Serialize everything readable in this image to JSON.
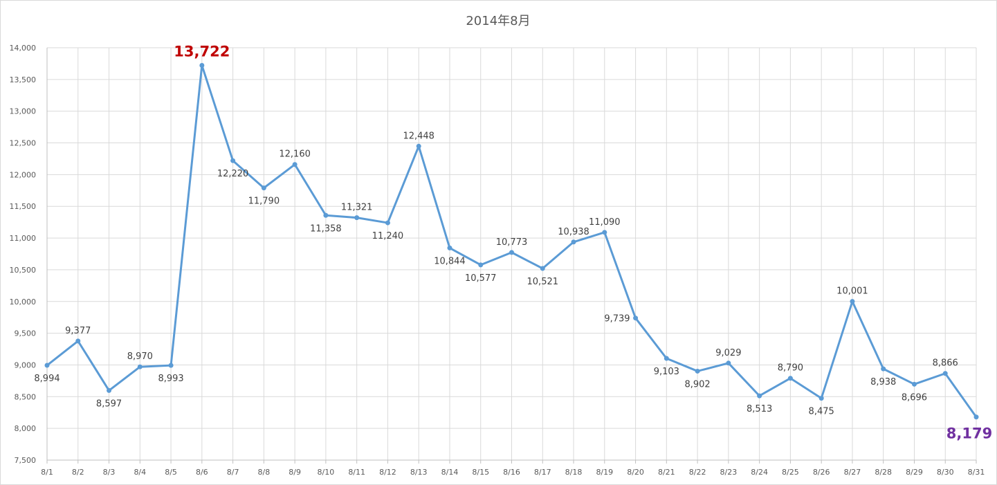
{
  "chart_data": {
    "type": "line",
    "title": "2014年8月",
    "categories": [
      "8/1",
      "8/2",
      "8/3",
      "8/4",
      "8/5",
      "8/6",
      "8/7",
      "8/8",
      "8/9",
      "8/10",
      "8/11",
      "8/12",
      "8/13",
      "8/14",
      "8/15",
      "8/16",
      "8/17",
      "8/18",
      "8/19",
      "8/20",
      "8/21",
      "8/22",
      "8/23",
      "8/24",
      "8/25",
      "8/26",
      "8/27",
      "8/28",
      "8/29",
      "8/30",
      "8/31"
    ],
    "values": [
      8994,
      9377,
      8597,
      8970,
      8993,
      13722,
      12220,
      11790,
      12160,
      11358,
      11321,
      11240,
      12448,
      10844,
      10577,
      10773,
      10521,
      10938,
      11090,
      9739,
      9103,
      8902,
      9029,
      8513,
      8790,
      8475,
      10001,
      8938,
      8696,
      8866,
      8179
    ],
    "data_labels": [
      "8,994",
      "9,377",
      "8,597",
      "8,970",
      "8,993",
      "13,722",
      "12,220",
      "11,790",
      "12,160",
      "11,358",
      "11,321",
      "11,240",
      "12,448",
      "10,844",
      "10,577",
      "10,773",
      "10,521",
      "10,938",
      "11,090",
      "9,739",
      "9,103",
      "8,902",
      "9,029",
      "8,513",
      "8,790",
      "8,475",
      "10,001",
      "8,938",
      "8,696",
      "8,866",
      "8,179"
    ],
    "label_position": [
      "below",
      "above",
      "below",
      "above",
      "below",
      "above",
      "below",
      "below",
      "above",
      "below",
      "above",
      "below",
      "above",
      "below",
      "below",
      "above",
      "below",
      "above",
      "above",
      "left",
      "below",
      "below",
      "above",
      "below",
      "above",
      "below",
      "above",
      "below",
      "below",
      "above",
      "below"
    ],
    "highlight": {
      "max_index": 5,
      "min_index": 30
    },
    "ylim": [
      7500,
      14000
    ],
    "yticks": [
      7500,
      8000,
      8500,
      9000,
      9500,
      10000,
      10500,
      11000,
      11500,
      12000,
      12500,
      13000,
      13500,
      14000
    ],
    "ytick_labels": [
      "7,500",
      "8,000",
      "8,500",
      "9,000",
      "9,500",
      "10,000",
      "10,500",
      "11,000",
      "11,500",
      "12,000",
      "12,500",
      "13,000",
      "13,500",
      "14,000"
    ],
    "xlabel": "",
    "ylabel": "",
    "grid": true,
    "legend": "none",
    "colors": {
      "line": "#5b9bd5",
      "max_label": "#c00000",
      "min_label": "#7030a0"
    }
  }
}
